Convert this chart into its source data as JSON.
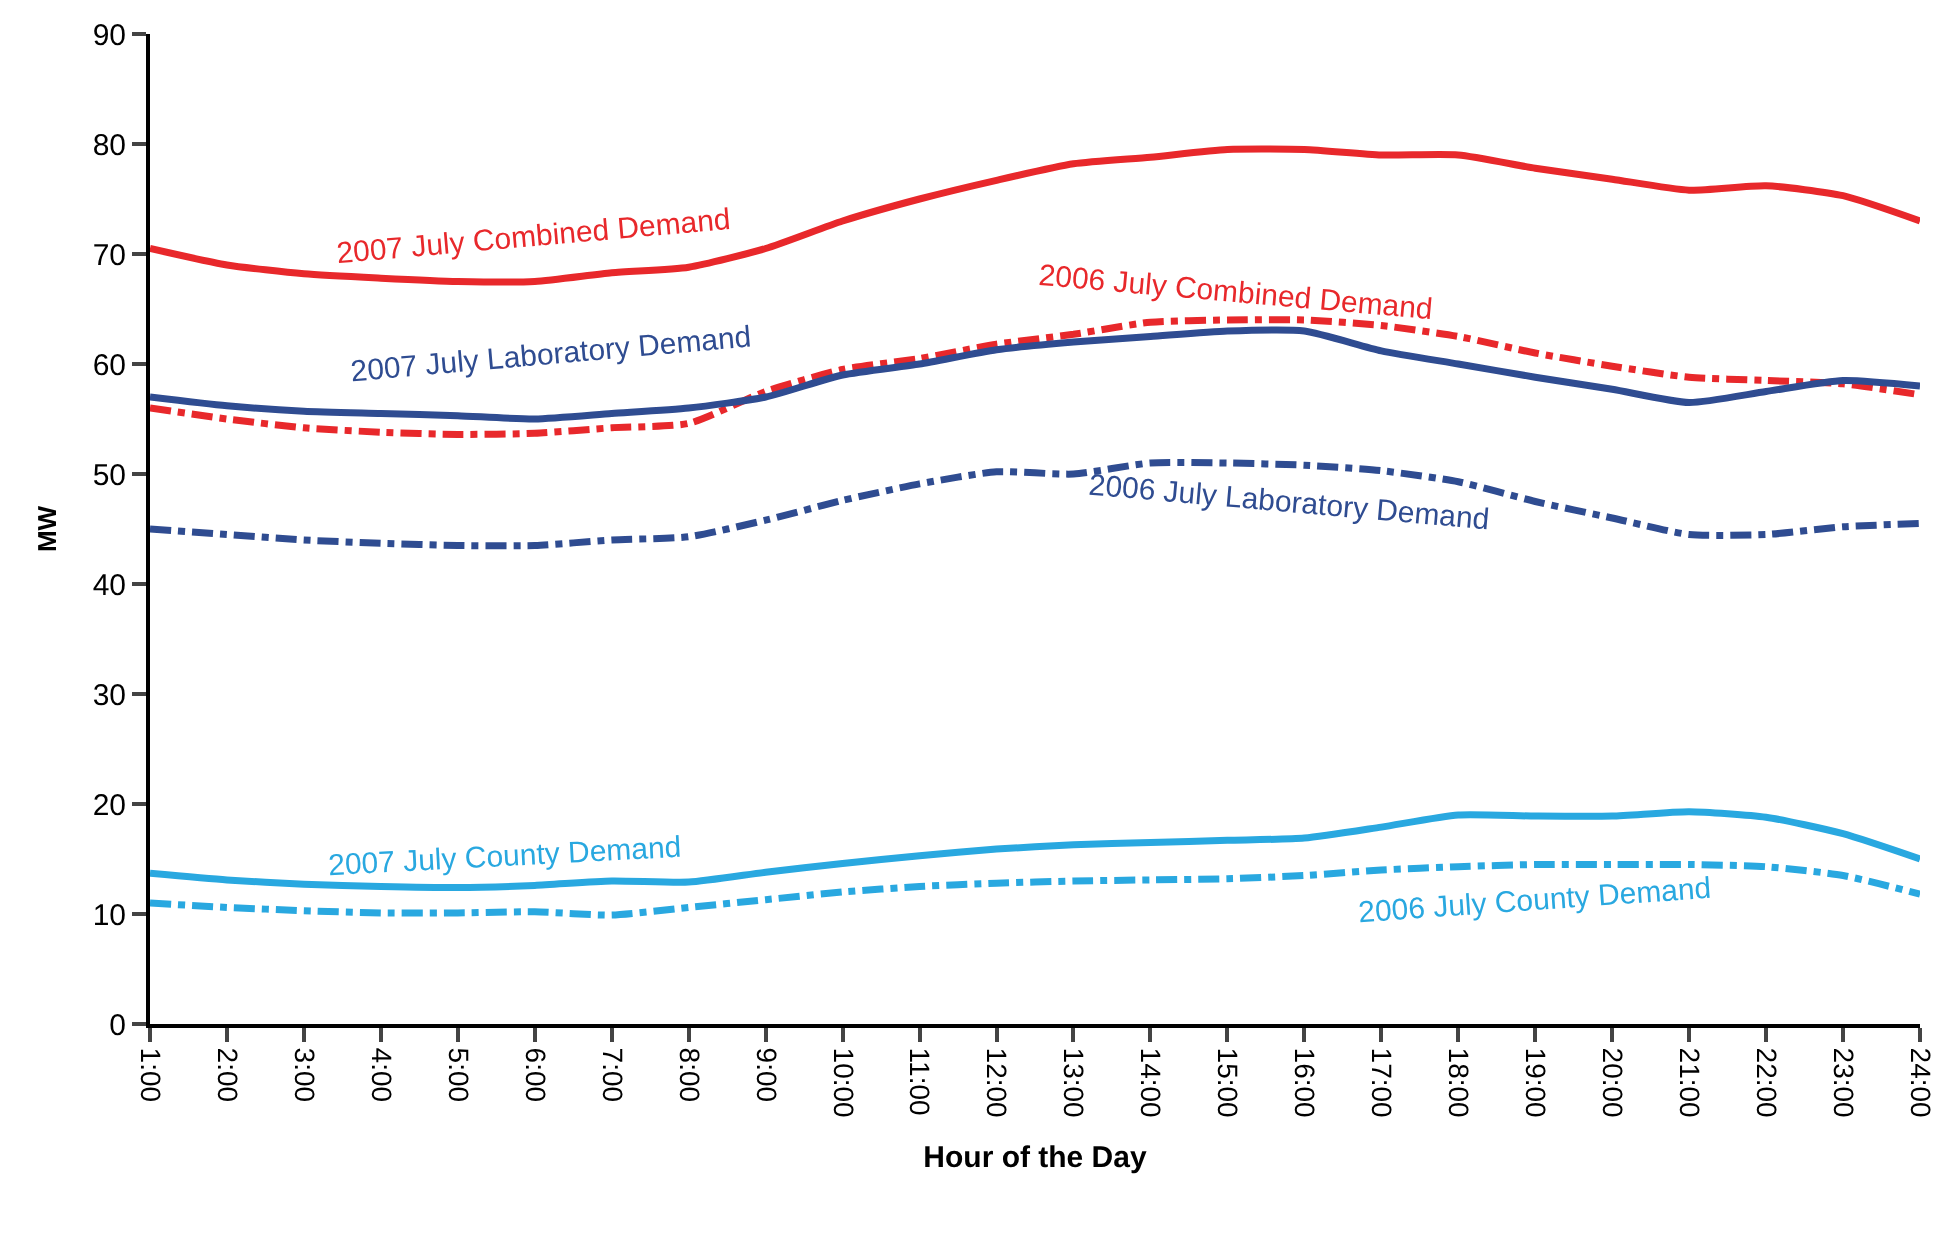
{
  "chart_data": {
    "type": "line",
    "xlabel": "Hour of the Day",
    "ylabel": "MW",
    "categories": [
      "1:00",
      "2:00",
      "3:00",
      "4:00",
      "5:00",
      "6:00",
      "7:00",
      "8:00",
      "9:00",
      "10:00",
      "11:00",
      "12:00",
      "13:00",
      "14:00",
      "15:00",
      "16:00",
      "17:00",
      "18:00",
      "19:00",
      "20:00",
      "21:00",
      "22:00",
      "23:00",
      "24:00"
    ],
    "ylim": [
      0,
      90
    ],
    "yticks": [
      0,
      10,
      20,
      30,
      40,
      50,
      60,
      70,
      80,
      90
    ],
    "legend": false,
    "marker": "none",
    "series": [
      {
        "name": "2007 July Combined Demand",
        "color": "#e8282b",
        "line_style": "solid",
        "values": [
          70.5,
          69,
          68.2,
          67.8,
          67.5,
          67.5,
          68.3,
          68.8,
          70.5,
          73,
          75,
          76.7,
          78.2,
          78.8,
          79.5,
          79.5,
          79,
          79,
          77.8,
          76.8,
          75.8,
          76.2,
          75.3,
          73
        ]
      },
      {
        "name": "2006 July Combined Demand",
        "color": "#e8282b",
        "line_style": "dashed",
        "values": [
          56,
          55,
          54.2,
          53.8,
          53.6,
          53.7,
          54.2,
          54.6,
          57.5,
          59.5,
          60.5,
          61.8,
          62.7,
          63.8,
          64,
          64,
          63.5,
          62.5,
          61,
          59.8,
          58.8,
          58.5,
          58.2,
          57.2
        ]
      },
      {
        "name": "2007 July Laboratory Demand",
        "color": "#2f4c91",
        "line_style": "solid",
        "values": [
          57,
          56.2,
          55.7,
          55.5,
          55.3,
          55,
          55.5,
          56,
          57,
          59,
          60,
          61.3,
          62,
          62.5,
          63,
          63,
          61.2,
          60,
          58.8,
          57.7,
          56.5,
          57.5,
          58.5,
          58
        ]
      },
      {
        "name": "2006 July Laboratory Demand",
        "color": "#2f4c91",
        "line_style": "dashed",
        "values": [
          45,
          44.5,
          44,
          43.7,
          43.5,
          43.5,
          44,
          44.3,
          45.8,
          47.6,
          49.1,
          50.2,
          50,
          51,
          51,
          50.8,
          50.3,
          49.3,
          47.5,
          46,
          44.5,
          44.5,
          45.2,
          45.5
        ]
      },
      {
        "name": "2007 July County Demand",
        "color": "#29a8e0",
        "line_style": "solid",
        "values": [
          13.7,
          13.1,
          12.7,
          12.5,
          12.4,
          12.6,
          13,
          12.9,
          13.8,
          14.6,
          15.3,
          15.9,
          16.3,
          16.5,
          16.7,
          16.9,
          17.9,
          19,
          18.9,
          18.9,
          19.3,
          18.8,
          17.3,
          15
        ]
      },
      {
        "name": "2006 July County Demand",
        "color": "#29a8e0",
        "line_style": "dashed",
        "values": [
          11,
          10.6,
          10.3,
          10.1,
          10.1,
          10.2,
          9.9,
          10.6,
          11.3,
          12,
          12.5,
          12.8,
          13,
          13.1,
          13.2,
          13.5,
          14,
          14.3,
          14.5,
          14.5,
          14.5,
          14.3,
          13.5,
          11.8
        ]
      }
    ]
  }
}
